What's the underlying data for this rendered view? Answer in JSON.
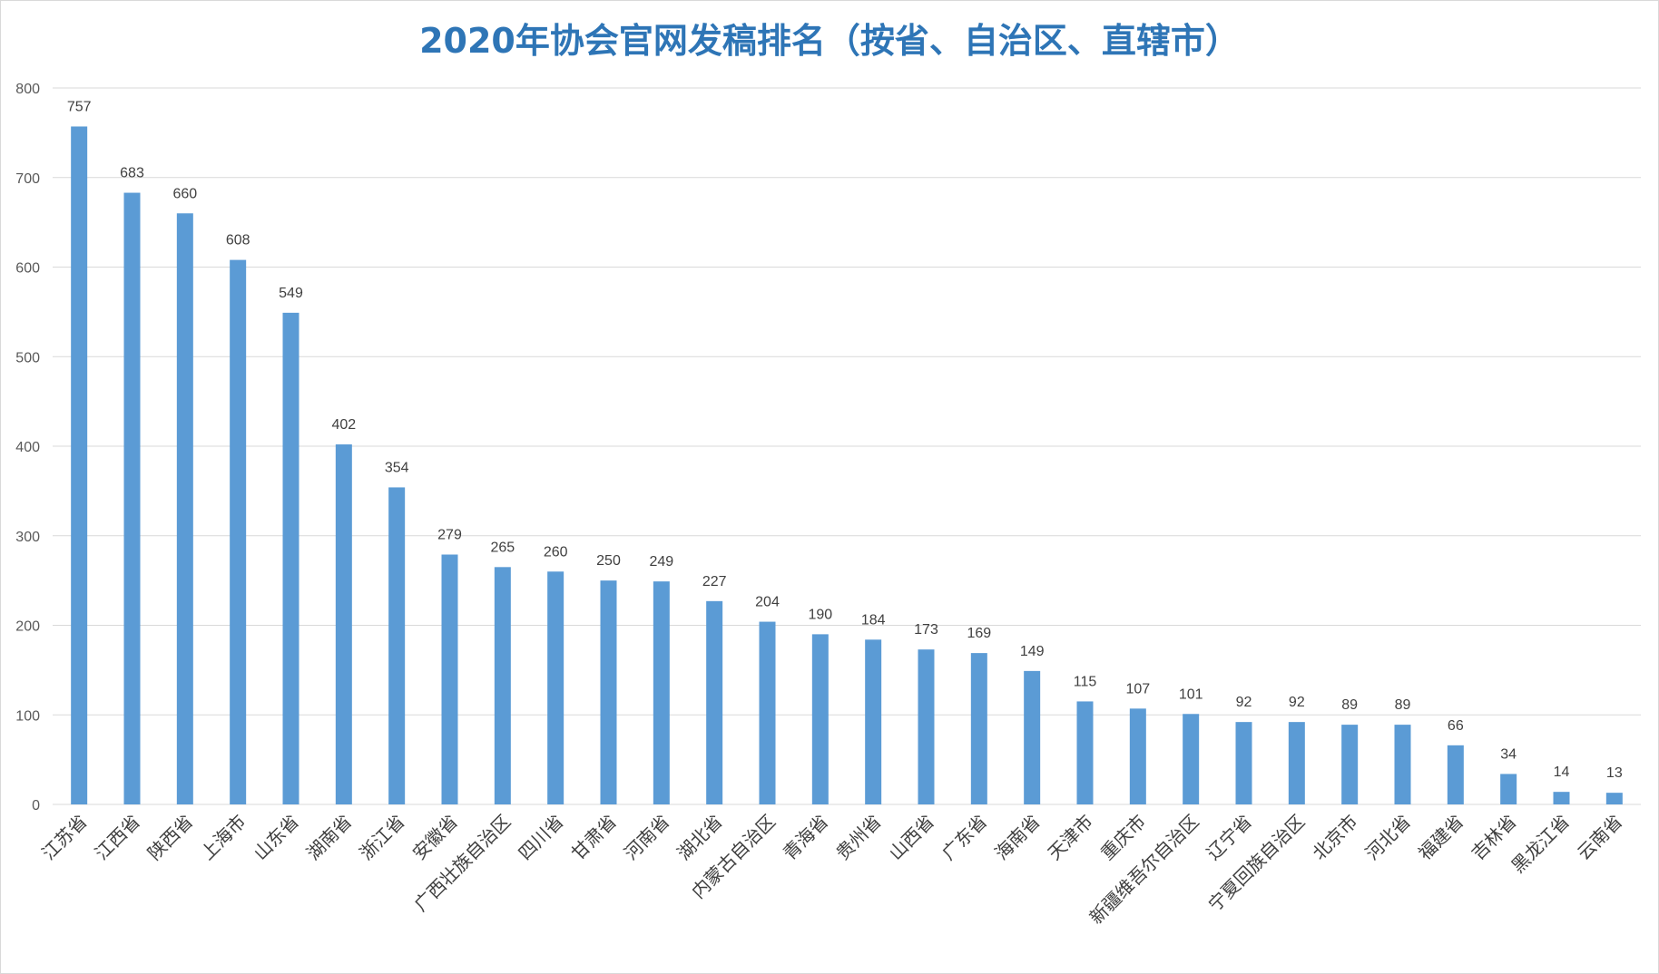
{
  "chart_data": {
    "type": "bar",
    "title": "2020年协会官网发稿排名（按省、自治区、直辖市）",
    "xlabel": "",
    "ylabel": "",
    "ylim": [
      0,
      800
    ],
    "yticks": [
      0,
      100,
      200,
      300,
      400,
      500,
      600,
      700,
      800
    ],
    "grid": true,
    "legend": "none",
    "bar_color": "#5b9bd5",
    "categories": [
      "江苏省",
      "江西省",
      "陕西省",
      "上海市",
      "山东省",
      "湖南省",
      "浙江省",
      "安徽省",
      "广西壮族自治区",
      "四川省",
      "甘肃省",
      "河南省",
      "湖北省",
      "内蒙古自治区",
      "青海省",
      "贵州省",
      "山西省",
      "广东省",
      "海南省",
      "天津市",
      "重庆市",
      "新疆维吾尔自治区",
      "辽宁省",
      "宁夏回族自治区",
      "北京市",
      "河北省",
      "福建省",
      "吉林省",
      "黑龙江省",
      "云南省"
    ],
    "values": [
      757,
      683,
      660,
      608,
      549,
      402,
      354,
      279,
      265,
      260,
      250,
      249,
      227,
      204,
      190,
      184,
      173,
      169,
      149,
      115,
      107,
      101,
      92,
      92,
      89,
      89,
      66,
      34,
      14,
      13
    ]
  }
}
